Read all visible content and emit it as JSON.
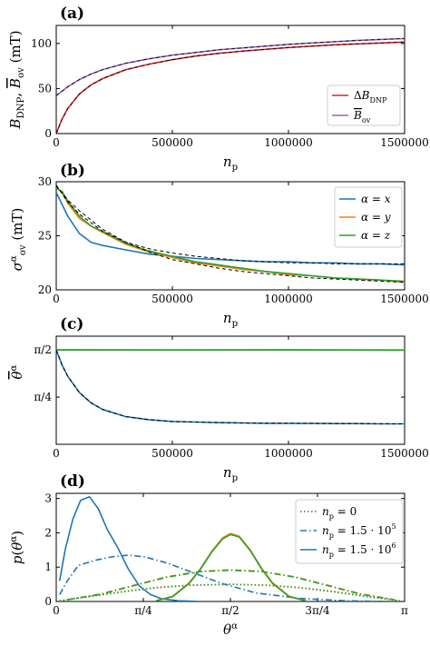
{
  "colors": {
    "red": "#d62728",
    "purple": "#9467bd",
    "blue": "#1f77b4",
    "orange": "#ff7f0e",
    "green": "#2ca02c",
    "fit": "#000000"
  },
  "chart_data": [
    {
      "panel": "(a)",
      "type": "line",
      "ylabel": "B_DNP, B̄_ov (mT)",
      "xlabel": "n_p",
      "xlim": [
        0,
        1500000
      ],
      "ylim": [
        0,
        120
      ],
      "xticks": [
        0,
        500000,
        1000000,
        1500000
      ],
      "xtick_labels": [
        "0",
        "500000",
        "1000000",
        "1500000"
      ],
      "yticks": [
        0,
        50,
        100
      ],
      "ytick_labels": [
        "0",
        "50",
        "100"
      ],
      "legend_position": "lower-right",
      "series": [
        {
          "name": "ΔB_DNP",
          "color": "red",
          "x": [
            0,
            25000,
            50000,
            100000,
            150000,
            200000,
            300000,
            400000,
            500000,
            600000,
            700000,
            800000,
            900000,
            1000000,
            1100000,
            1200000,
            1300000,
            1400000,
            1500000
          ],
          "y": [
            0,
            16,
            28,
            44,
            54,
            61,
            71,
            77,
            82,
            86,
            89,
            91.5,
            93.5,
            95.5,
            97,
            98.5,
            99.5,
            100.5,
            101.5
          ]
        },
        {
          "name": "B̄_ov",
          "color": "purple",
          "x": [
            0,
            25000,
            50000,
            100000,
            150000,
            200000,
            300000,
            400000,
            500000,
            600000,
            700000,
            800000,
            900000,
            1000000,
            1100000,
            1200000,
            1300000,
            1400000,
            1500000
          ],
          "y": [
            42,
            47,
            52,
            60,
            66,
            71,
            78,
            83,
            87,
            90,
            93,
            95,
            97,
            99,
            100.5,
            102,
            103.5,
            104.5,
            105.5
          ]
        }
      ]
    },
    {
      "panel": "(b)",
      "type": "line",
      "ylabel": "σ_ov^α (mT)",
      "xlabel": "n_p",
      "xlim": [
        0,
        1500000
      ],
      "ylim": [
        20,
        30
      ],
      "xticks": [
        0,
        500000,
        1000000,
        1500000
      ],
      "xtick_labels": [
        "0",
        "500000",
        "1000000",
        "1500000"
      ],
      "yticks": [
        20,
        25,
        30
      ],
      "ytick_labels": [
        "20",
        "25",
        "30"
      ],
      "legend_position": "upper-right",
      "series": [
        {
          "name": "α = x",
          "color": "blue",
          "x": [
            0,
            25000,
            50000,
            100000,
            150000,
            200000,
            300000,
            400000,
            500000,
            600000,
            700000,
            800000,
            900000,
            1000000,
            1100000,
            1200000,
            1300000,
            1400000,
            1500000
          ],
          "y": [
            29.0,
            27.9,
            26.8,
            25.2,
            24.4,
            24.1,
            23.7,
            23.3,
            23.1,
            22.9,
            22.8,
            22.7,
            22.6,
            22.6,
            22.5,
            22.5,
            22.4,
            22.4,
            22.3
          ]
        },
        {
          "name": "α = y",
          "color": "orange",
          "x": [
            0,
            25000,
            50000,
            100000,
            150000,
            200000,
            300000,
            400000,
            500000,
            600000,
            700000,
            800000,
            900000,
            1000000,
            1100000,
            1200000,
            1300000,
            1400000,
            1500000
          ],
          "y": [
            29.5,
            29.0,
            28.0,
            26.6,
            25.9,
            25.3,
            24.2,
            23.5,
            23.0,
            22.5,
            22.2,
            21.9,
            21.7,
            21.4,
            21.3,
            21.1,
            21.0,
            20.9,
            20.7
          ]
        },
        {
          "name": "α = z",
          "color": "green",
          "x": [
            0,
            25000,
            50000,
            100000,
            150000,
            200000,
            300000,
            400000,
            500000,
            600000,
            700000,
            800000,
            900000,
            1000000,
            1100000,
            1200000,
            1300000,
            1400000,
            1500000
          ],
          "y": [
            29.4,
            29.1,
            28.2,
            26.8,
            25.9,
            25.4,
            24.3,
            23.6,
            23.1,
            22.6,
            22.3,
            22.0,
            21.7,
            21.5,
            21.3,
            21.1,
            21.0,
            20.9,
            20.8
          ]
        }
      ],
      "fits": [
        {
          "x": [
            0,
            50000,
            100000,
            200000,
            300000,
            400000,
            500000,
            600000,
            700000,
            800000,
            900000,
            1000000,
            1100000,
            1200000,
            1300000,
            1400000,
            1500000
          ],
          "y": [
            29.7,
            28.1,
            27.0,
            25.4,
            24.4,
            23.8,
            23.4,
            23.1,
            22.9,
            22.7,
            22.6,
            22.5,
            22.5,
            22.4,
            22.4,
            22.4,
            22.4
          ]
        },
        {
          "x": [
            0,
            50000,
            100000,
            200000,
            300000,
            400000,
            500000,
            600000,
            700000,
            800000,
            900000,
            1000000,
            1100000,
            1200000,
            1300000,
            1400000,
            1500000
          ],
          "y": [
            29.6,
            28.3,
            27.3,
            25.6,
            24.4,
            23.5,
            22.8,
            22.4,
            22.0,
            21.7,
            21.5,
            21.3,
            21.1,
            21.0,
            20.9,
            20.8,
            20.7
          ]
        }
      ]
    },
    {
      "panel": "(c)",
      "type": "line",
      "ylabel": "θ̄^α",
      "xlabel": "n_p",
      "xlim": [
        0,
        1500000
      ],
      "ylim": [
        0.0,
        1.8
      ],
      "xticks": [
        0,
        500000,
        1000000,
        1500000
      ],
      "xtick_labels": [
        "0",
        "500000",
        "1000000",
        "1500000"
      ],
      "yticks": [
        0.7854,
        1.5708
      ],
      "ytick_labels": [
        "π/4",
        "π/2"
      ],
      "series": [
        {
          "name": "α = x",
          "color": "blue",
          "x": [
            0,
            25000,
            50000,
            100000,
            150000,
            200000,
            300000,
            400000,
            500000,
            600000,
            700000,
            800000,
            900000,
            1000000,
            1100000,
            1200000,
            1300000,
            1400000,
            1500000
          ],
          "y": [
            1.57,
            1.32,
            1.13,
            0.86,
            0.69,
            0.58,
            0.46,
            0.41,
            0.38,
            0.37,
            0.36,
            0.355,
            0.35,
            0.35,
            0.35,
            0.345,
            0.345,
            0.34,
            0.34
          ]
        },
        {
          "name": "α = y",
          "color": "orange",
          "x": [
            0,
            500000,
            1000000,
            1500000
          ],
          "y": [
            1.575,
            1.573,
            1.575,
            1.572
          ]
        },
        {
          "name": "α = z",
          "color": "green",
          "x": [
            0,
            500000,
            1000000,
            1500000
          ],
          "y": [
            1.57,
            1.568,
            1.57,
            1.567
          ]
        }
      ],
      "fits": [
        {
          "x": [
            0,
            25000,
            50000,
            100000,
            150000,
            200000,
            300000,
            400000,
            500000,
            600000,
            800000,
            1000000,
            1200000,
            1500000
          ],
          "y": [
            1.57,
            1.32,
            1.13,
            0.86,
            0.69,
            0.58,
            0.46,
            0.41,
            0.38,
            0.37,
            0.355,
            0.35,
            0.345,
            0.34
          ]
        }
      ]
    },
    {
      "panel": "(d)",
      "type": "line",
      "ylabel": "p(θ^α)",
      "xlabel": "θ^α",
      "xlim": [
        0,
        3.1416
      ],
      "ylim": [
        0,
        3.15
      ],
      "xticks": [
        0,
        0.7854,
        1.5708,
        2.3562,
        3.1416
      ],
      "xtick_labels": [
        "0",
        "π/4",
        "π/2",
        "3π/4",
        "π"
      ],
      "yticks": [
        0,
        1,
        2,
        3
      ],
      "ytick_labels": [
        "0",
        "1",
        "2",
        "3"
      ],
      "legend_position": "upper-right",
      "legend": [
        {
          "label": "n_p = 0",
          "style": "dotted"
        },
        {
          "label": "n_p = 1.5 · 10^5",
          "style": "dashdot"
        },
        {
          "label": "n_p = 1.5 · 10^6",
          "style": "solid"
        }
      ],
      "series": [
        {
          "name": "x, n_p = 0",
          "color": "blue",
          "style": "dotted",
          "x": [
            0.03,
            0.3,
            0.6,
            0.9,
            1.2,
            1.5708,
            1.9,
            2.2,
            2.5,
            2.8,
            3.1
          ],
          "y": [
            0.02,
            0.15,
            0.29,
            0.4,
            0.47,
            0.5,
            0.47,
            0.4,
            0.29,
            0.15,
            0.02
          ]
        },
        {
          "name": "y, n_p = 0",
          "color": "orange",
          "style": "dotted",
          "x": [
            0.03,
            0.3,
            0.6,
            0.9,
            1.2,
            1.5708,
            1.9,
            2.2,
            2.5,
            2.8,
            3.1
          ],
          "y": [
            0.02,
            0.15,
            0.29,
            0.41,
            0.48,
            0.5,
            0.48,
            0.41,
            0.29,
            0.15,
            0.02
          ]
        },
        {
          "name": "z, n_p = 0",
          "color": "green",
          "style": "dotted",
          "x": [
            0.03,
            0.3,
            0.6,
            0.9,
            1.2,
            1.5708,
            1.9,
            2.2,
            2.5,
            2.8,
            3.1
          ],
          "y": [
            0.02,
            0.14,
            0.28,
            0.4,
            0.47,
            0.5,
            0.47,
            0.4,
            0.28,
            0.14,
            0.02
          ]
        },
        {
          "name": "x, n_p = 1.5 · 10^5",
          "color": "blue",
          "style": "dashdot",
          "x": [
            0.03,
            0.1,
            0.2,
            0.35,
            0.5,
            0.65,
            0.8,
            1.0,
            1.2,
            1.5,
            1.8,
            2.2,
            2.6,
            3.0
          ],
          "y": [
            0.2,
            0.6,
            1.05,
            1.2,
            1.3,
            1.35,
            1.3,
            1.12,
            0.88,
            0.52,
            0.25,
            0.09,
            0.02,
            0.0
          ]
        },
        {
          "name": "y, n_p = 1.5 · 10^5",
          "color": "orange",
          "style": "dashdot",
          "x": [
            0.1,
            0.4,
            0.7,
            1.0,
            1.3,
            1.5708,
            1.85,
            2.15,
            2.45,
            2.75,
            3.05
          ],
          "y": [
            0.05,
            0.22,
            0.47,
            0.72,
            0.88,
            0.92,
            0.88,
            0.72,
            0.47,
            0.22,
            0.05
          ]
        },
        {
          "name": "z, n_p = 1.5 · 10^5",
          "color": "green",
          "style": "dashdot",
          "x": [
            0.1,
            0.4,
            0.7,
            1.0,
            1.3,
            1.5708,
            1.85,
            2.15,
            2.45,
            2.75,
            3.05
          ],
          "y": [
            0.05,
            0.21,
            0.46,
            0.71,
            0.87,
            0.91,
            0.87,
            0.71,
            0.46,
            0.21,
            0.05
          ]
        },
        {
          "name": "x, n_p = 1.5 · 10^6",
          "color": "blue",
          "style": "solid",
          "x": [
            0.03,
            0.08,
            0.15,
            0.22,
            0.3,
            0.38,
            0.46,
            0.55,
            0.65,
            0.75,
            0.85,
            0.95,
            1.1,
            1.3
          ],
          "y": [
            0.6,
            1.5,
            2.4,
            2.95,
            3.05,
            2.7,
            2.1,
            1.6,
            0.95,
            0.45,
            0.2,
            0.08,
            0.02,
            0.0
          ]
        },
        {
          "name": "y, n_p = 1.5 · 10^6",
          "color": "orange",
          "style": "solid",
          "x": [
            0.9,
            1.05,
            1.2,
            1.3,
            1.4,
            1.5,
            1.5708,
            1.65,
            1.75,
            1.85,
            1.95,
            2.1,
            2.25
          ],
          "y": [
            0.02,
            0.15,
            0.55,
            0.95,
            1.45,
            1.85,
            1.98,
            1.9,
            1.5,
            0.98,
            0.55,
            0.15,
            0.02
          ]
        },
        {
          "name": "z, n_p = 1.5 · 10^6",
          "color": "green",
          "style": "solid",
          "x": [
            0.9,
            1.05,
            1.2,
            1.3,
            1.4,
            1.5,
            1.5708,
            1.65,
            1.75,
            1.85,
            1.95,
            2.1,
            2.25
          ],
          "y": [
            0.02,
            0.14,
            0.53,
            0.94,
            1.43,
            1.82,
            1.95,
            1.88,
            1.48,
            0.96,
            0.53,
            0.14,
            0.02
          ]
        }
      ]
    }
  ]
}
